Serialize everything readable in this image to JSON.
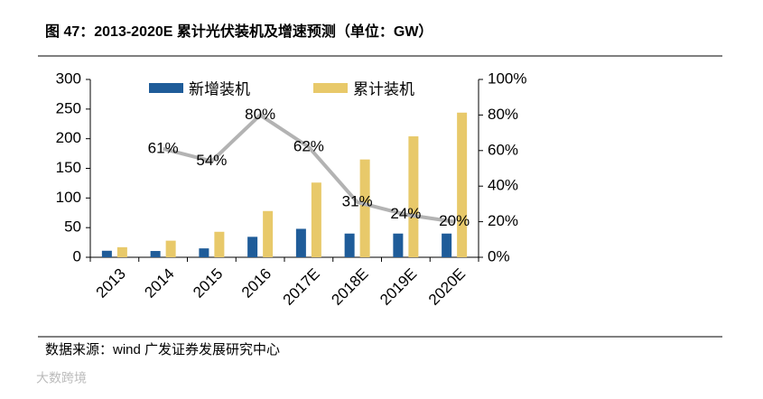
{
  "chart_data": {
    "type": "bar",
    "title": "图 47：2013-2020E 累计光伏装机及增速预测（单位：GW）",
    "categories": [
      "2013",
      "2014",
      "2015",
      "2016",
      "2017E",
      "2018E",
      "2019E",
      "2020E"
    ],
    "series": [
      {
        "name": "新增装机",
        "color": "#1f5c99",
        "values": [
          11,
          10.6,
          15,
          34.5,
          48,
          40,
          40,
          40
        ]
      },
      {
        "name": "累计装机",
        "color": "#e8c96a",
        "values": [
          17,
          28,
          43,
          78,
          126,
          165,
          204,
          244
        ]
      },
      {
        "type": "line",
        "axis": "y2",
        "color": "#b3b3b3",
        "values": [
          null,
          61,
          54,
          80,
          62,
          31,
          24,
          20
        ],
        "value_labels": [
          null,
          "61%",
          "54%",
          "80%",
          "62%",
          "31%",
          "24%",
          "20%"
        ]
      }
    ],
    "ylim": [
      0,
      300
    ],
    "yticks": [
      0,
      50,
      100,
      150,
      200,
      250,
      300
    ],
    "y2lim": [
      0,
      100
    ],
    "y2ticks": [
      {
        "value": 0,
        "label": "0%"
      },
      {
        "value": 20,
        "label": "20%"
      },
      {
        "value": 40,
        "label": "40%"
      },
      {
        "value": 60,
        "label": "60%"
      },
      {
        "value": 80,
        "label": "80%"
      },
      {
        "value": 100,
        "label": "100%"
      }
    ],
    "source": "数据来源：wind 广发证券发展研究中心",
    "watermark": "大数跨境"
  }
}
